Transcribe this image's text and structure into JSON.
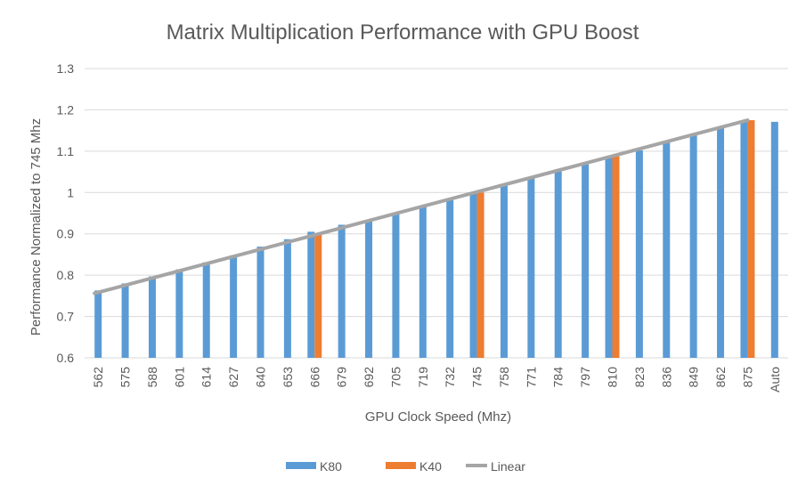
{
  "chart_data": {
    "type": "bar",
    "title": "Matrix Multiplication Performance with GPU Boost",
    "xlabel": "GPU Clock Speed (Mhz)",
    "ylabel": "Performance Normalized to 745 Mhz",
    "categories": [
      "562",
      "575",
      "588",
      "601",
      "614",
      "627",
      "640",
      "653",
      "666",
      "679",
      "692",
      "705",
      "719",
      "732",
      "745",
      "758",
      "771",
      "784",
      "797",
      "810",
      "823",
      "836",
      "849",
      "862",
      "875",
      "Auto"
    ],
    "yticks": [
      "0.6",
      "0.7",
      "0.8",
      "0.9",
      "1",
      "1.1",
      "1.2",
      "1.3"
    ],
    "ylim": [
      0.6,
      1.3
    ],
    "grid": true,
    "legend_position": "bottom",
    "series": [
      {
        "name": "K80",
        "kind": "bar",
        "color": "#5b9bd5",
        "values": [
          0.763,
          0.78,
          0.797,
          0.814,
          0.831,
          0.848,
          0.869,
          0.887,
          0.905,
          0.922,
          0.931,
          0.948,
          0.965,
          0.982,
          1.0,
          1.017,
          1.034,
          1.051,
          1.068,
          1.085,
          1.102,
          1.122,
          1.139,
          1.156,
          1.175,
          1.171
        ]
      },
      {
        "name": "K40",
        "kind": "bar",
        "color": "#ed7d31",
        "values": [
          null,
          null,
          null,
          null,
          null,
          null,
          null,
          null,
          0.899,
          null,
          null,
          null,
          null,
          null,
          1.0,
          null,
          null,
          null,
          null,
          1.088,
          null,
          null,
          null,
          null,
          1.175,
          null
        ]
      },
      {
        "name": "Linear",
        "kind": "line",
        "color": "#a5a5a5",
        "x_range": [
          "562",
          "875"
        ],
        "y_range": [
          0.756,
          1.175
        ]
      }
    ]
  }
}
